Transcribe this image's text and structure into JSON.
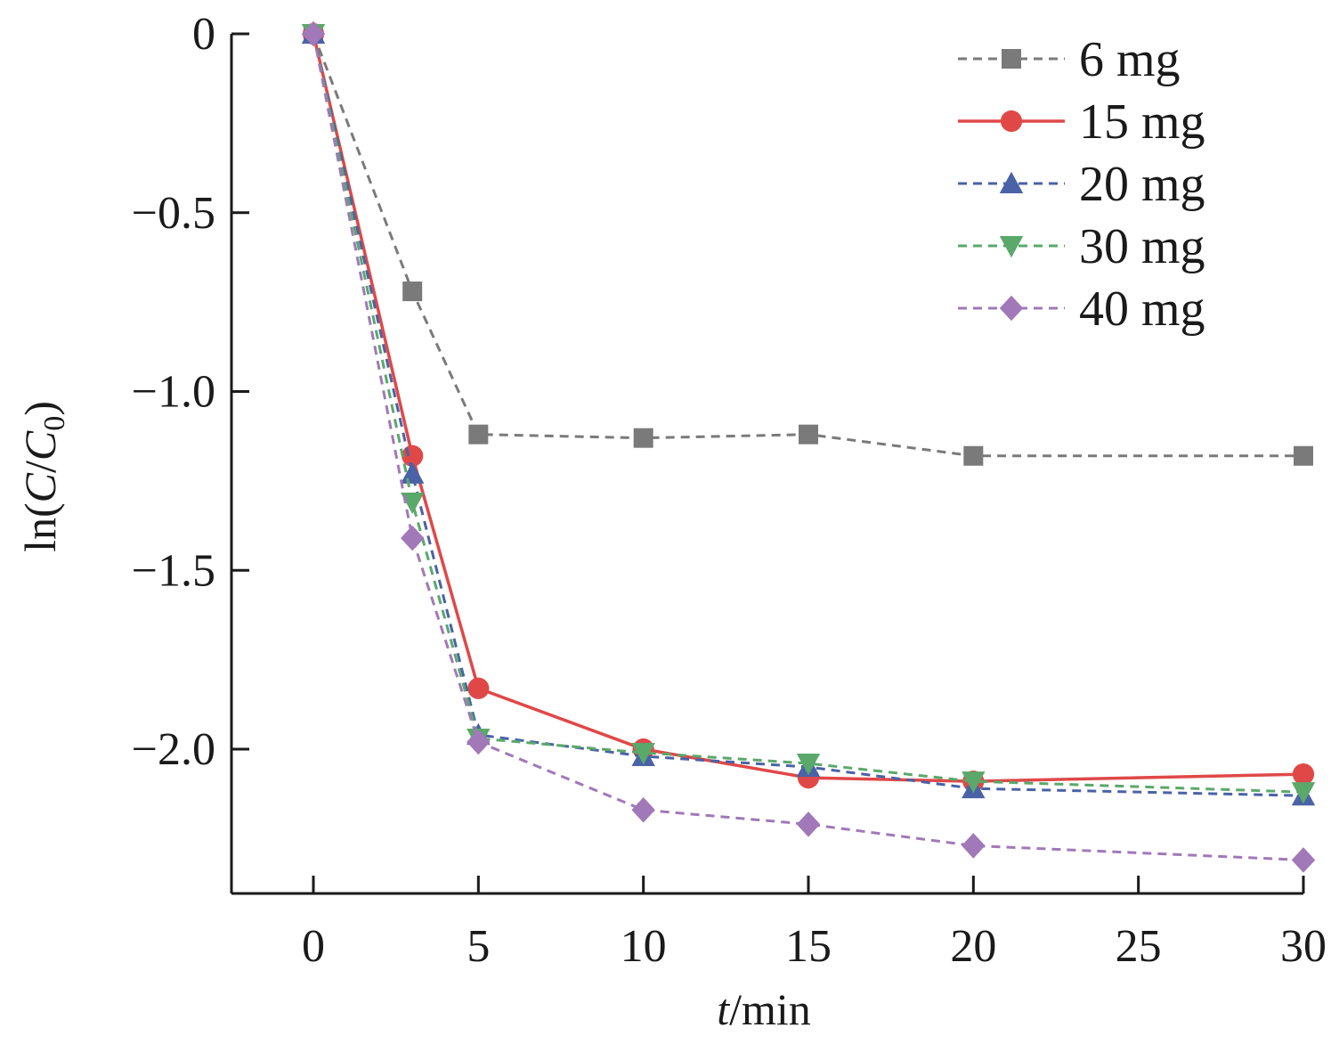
{
  "chart_data": {
    "type": "line",
    "xlabel_italic": "t",
    "xlabel_rest": "/min",
    "ylabel_prefix": "ln(",
    "ylabel_C": "C",
    "ylabel_slash": "/",
    "ylabel_C0": "C",
    "ylabel_sub": "0",
    "ylabel_suffix": ")",
    "xlim": [
      -2.5,
      30
    ],
    "ylim": [
      -2.4,
      0
    ],
    "xticks": [
      0,
      5,
      10,
      15,
      20,
      25,
      30
    ],
    "xtick_labels": [
      "0",
      "5",
      "10",
      "15",
      "20",
      "25",
      "30"
    ],
    "yticks": [
      0,
      -0.5,
      -1.0,
      -1.5,
      -2.0
    ],
    "ytick_labels": [
      "0",
      "−0.5",
      "−1.0",
      "−1.5",
      "−2.0"
    ],
    "grid": false,
    "legend_position": "top-right",
    "x": [
      0,
      3,
      5,
      10,
      15,
      20,
      30
    ],
    "series": [
      {
        "name": "6 mg",
        "color": "#7a7a7a",
        "marker": "square",
        "dashed": true,
        "values": [
          0,
          -0.72,
          -1.12,
          -1.13,
          -1.12,
          -1.18,
          -1.18
        ]
      },
      {
        "name": "15 mg",
        "color": "#e04848",
        "marker": "circle",
        "dashed": false,
        "values": [
          0,
          -1.18,
          -1.83,
          -2.0,
          -2.08,
          -2.09,
          -2.07
        ]
      },
      {
        "name": "20 mg",
        "color": "#4a62a6",
        "marker": "triangle-up",
        "dashed": true,
        "values": [
          0,
          -1.23,
          -1.96,
          -2.02,
          -2.05,
          -2.11,
          -2.13
        ]
      },
      {
        "name": "30 mg",
        "color": "#5aa86a",
        "marker": "triangle-down",
        "dashed": true,
        "values": [
          0,
          -1.31,
          -1.97,
          -2.01,
          -2.04,
          -2.09,
          -2.12
        ]
      },
      {
        "name": "40 mg",
        "color": "#a178b8",
        "marker": "diamond",
        "dashed": true,
        "values": [
          0,
          -1.41,
          -1.98,
          -2.17,
          -2.21,
          -2.27,
          -2.31
        ]
      }
    ]
  }
}
